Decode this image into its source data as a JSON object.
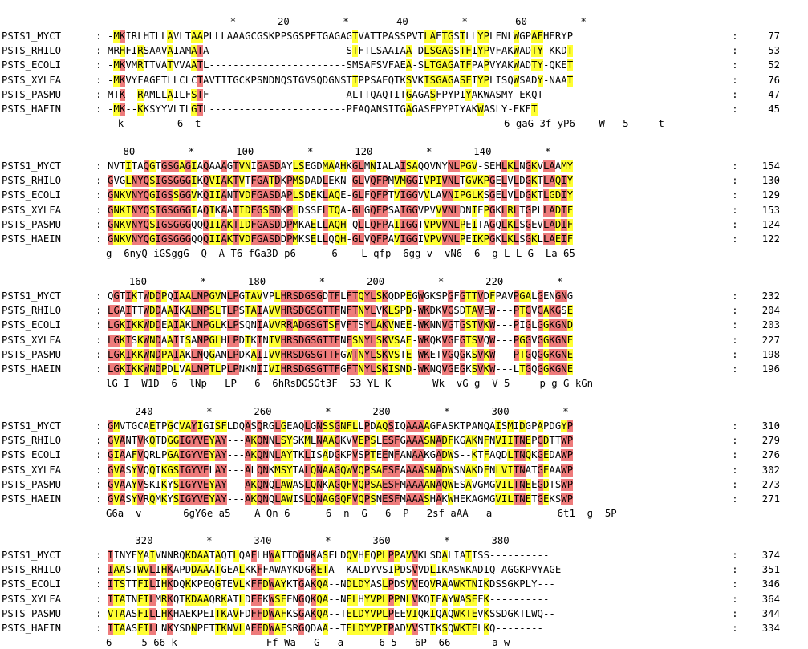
{
  "colors": {
    "identical": "#ee7b7b",
    "similar": "#ffff33",
    "text": "#000000",
    "background": "#ffffff"
  },
  "legend": {
    "identical_color_name": "red",
    "similar_color_name": "yellow"
  },
  "blocks": [
    {
      "ruler": "                     *       20         *        40         *        60         *",
      "rows": [
        {
          "name": "PSTS1_MYCT",
          "seq": "-MKIRLHTLLAVLTAAPLLLAAAGCGSKPPSGSPETGAGAGTVATTPASSPVTLAETGSTLLYPLFNLWGPAFHERYP",
          "end": "77"
        },
        {
          "name": "PSTS_RHILO",
          "seq": "MRHFIRSAAVAIAMATA-----------------------STFTLSAAIAA-DLSGAGSTFIYPVFAKWADTY-KKDT",
          "end": "53"
        },
        {
          "name": "PSTS_ECOLI",
          "seq": "-MKVMRTTVATVVAATL-----------------------SMSAFSVFAEA-SLTGAGATFPAPVYAKWADTY-QKET",
          "end": "52"
        },
        {
          "name": "PSTS_XYLFA",
          "seq": "-MKVYFAGFTLLCLCTAVTITGCKPSNDNQSTGVSQDGNSTTPPSAEQTKSVKISGAGASFIYPLISQWSADY-NAAT",
          "end": "76"
        },
        {
          "name": "PSTS_PASMU",
          "seq": "MTK--RAMLLAILFSTF-----------------------ALTTQAQTITGAGASFPYPIYAKWASMY-EKQT",
          "end": "47"
        },
        {
          "name": "PSTS_HAEIN",
          "seq": "-MK--KKSYYVLTLGTL-----------------------PFAQANSITGAGASFPYPIYAKWASLY-EKET",
          "end": "45"
        }
      ],
      "consensus": "  k         6  t                                                   6 gaG 3f yP6    W   5     t"
    },
    {
      "ruler": "   80         *       100         *       120         *       140         *",
      "rows": [
        {
          "name": "PSTS1_MYCT",
          "seq": "NVTITAQGTGSGAGIAQAAAGTVNIGASDAYLSEGDMAAHKGLMNIALAISAQQVNYNLPGV-SEHLKLNGKVLAAMY",
          "end": "154"
        },
        {
          "name": "PSTS_RHILO",
          "seq": "GVGLNYQSIGSGGGIKQVIAKTVTFGATDKPMSDADLEKN-GLVQFPMVMGGIVPIVNLTGVKPGELVLDGKTLAQIY",
          "end": "130"
        },
        {
          "name": "PSTS_ECOLI",
          "seq": "GNKVNYQGIGSSGGVKQIIANTVDFGASDAPLSDEKLAQE-GLFQFPTVIGGVVLAVNIPGLKSGELVLDGKTLGDIY",
          "end": "129"
        },
        {
          "name": "PSTS_XYLFA",
          "seq": "GNKINYQSIGSGGGIAQIKAATIDFGSSDKPLDSSELTQA-GLGQFPSAIGGVPVVVNLDNIEPGKLRLTGPLLADIF",
          "end": "153"
        },
        {
          "name": "PSTS_PASMU",
          "seq": "GNKVNYQSIGSGGGQQQIIAKTIDFGASDDPMKAELLAQH-QLLQFPAIIGGTVPVVNLPEITAGQLKLSGEVLADIF",
          "end": "124"
        },
        {
          "name": "PSTS_HAEIN",
          "seq": "GNKVNYQGIGSGGGQQQIIAKTVDFGASDDPMKSELLQQH-GLVQFPAVIGGIVPVVNLPEIKPGKLKLSGKLLAEIF",
          "end": "122"
        }
      ],
      "consensus": "g  6nyQ iGSggG  Q  A T6 fGa3D p6      6    L qfp  6gg v  vN6  6  g L L G  La 65"
    },
    {
      "ruler": "    160         *       180         *       200         *       220         *",
      "rows": [
        {
          "name": "PSTS1_MYCT",
          "seq": "QGTIKTWDDPQIAALNPGVNLPGTAVVPLHRSDGSGDTFLFTQYLSKQDPEGWGKSPGFGTTVDFPAVPGALGENGNG",
          "end": "232"
        },
        {
          "name": "PSTS_RHILO",
          "seq": "LGAITTWDDAAIKALNPSLTLPSTAIAVVHRSDGSGTTFNFTNYLVKLSPD-WKDKVGSDTAVEW---PTGVGAKGSE",
          "end": "204"
        },
        {
          "name": "PSTS_ECOLI",
          "seq": "LGKIKKWDDEAIAKLNPGLKLPSQNIAVVRRADGSGTSFVFTSYLAKVNEE-WKNNVGTGSTVKW---PIGLGGKGND",
          "end": "203"
        },
        {
          "name": "PSTS_XYLFA",
          "seq": "LGKISKWNDAAIISANPGLHLPDTKINIVHRSDGSGTTFNFSNYLSKVSAE-WKQKVGEGTSVQW---PGGVGGKGNE",
          "end": "227"
        },
        {
          "name": "PSTS_PASMU",
          "seq": "LGKIKKWNDPAIAKLNQGANLPDKAIIVVHRSDGSGTTFGWTNYLSKVSTE-WKETVGQGKSVKW---PTGQGGKGNE",
          "end": "198"
        },
        {
          "name": "PSTS_HAEIN",
          "seq": "LGKIKKWNDPDLVALNPTLPLPNKNIIVIHRSDGSGTTFGFTNYLSKISND-WKNQVGEGKSVKW---LTGQGGKGNE",
          "end": "196"
        }
      ],
      "consensus": "lG I  W1D  6  lNp   LP   6  6hRsDGSGt3F  53 YL K       Wk  vG g  V 5     p g G kGn"
    },
    {
      "ruler": "     240         *       260         *       280         *       300         *",
      "rows": [
        {
          "name": "PSTS1_MYCT",
          "seq": "GMVTGCAETPGCVAYIGISFLDQASQRGLGEAQLGNSSGNFLLPDAQSIQAAAAGFASKTPANQAISMIDGPAPDGYP",
          "end": "310"
        },
        {
          "name": "PSTS_RHILO",
          "seq": "GVANTVKQTDGGIGYVEYAY---AKQNNLSYSKMLNAAGKVVEPSLESFGAAASNADFKGAKNFNVIITNEPGDTTWP",
          "end": "279"
        },
        {
          "name": "PSTS_ECOLI",
          "seq": "GIAAFVQRLPGAIGYVEYAY---AKQNNLAYTKLISADGKPVSPTEENFANAAKGADWS--KTFAQDLTNQKGEDAWP",
          "end": "276"
        },
        {
          "name": "PSTS_XYLFA",
          "seq": "GVASYVQQIKGSIGYVELAY---ALQNKMSYTALQNAAGQWVQPSAESFAAAASNADWSNAKDFNLVITNATGEAAWP",
          "end": "302"
        },
        {
          "name": "PSTS_PASMU",
          "seq": "GVAAYVSKIKYSIGYVEYAY---AKQNQLAWASLQNKAGQFVQPSAESFMAAAANAQWESAVGMGVILTNEEGDTSWP",
          "end": "273"
        },
        {
          "name": "PSTS_HAEIN",
          "seq": "GVASYVRQMKYSIGYVEYAY---AKQNQLAWISLQNAGGQFVQPSNESFMAAASHAKWHEKAGMGVILTNETGEKSWP",
          "end": "271"
        }
      ],
      "consensus": "G6a  v       6gY6e a5    A Qn 6      6  n  G   6  P   2sf aAA   a           6t1  g  5P"
    },
    {
      "ruler": "     320         *       340         *       360         *       380",
      "rows": [
        {
          "name": "PSTS1_MYCT",
          "seq": "IINYEYAIVNNRQKDAATAQTLQAFLHWAITDGNKASFLDQVHFQPLPPAVVKLSDALIATISS----------",
          "end": "374"
        },
        {
          "name": "PSTS_RHILO",
          "seq": "IAASTWVLIHKAPDDAAATGEALKKFFAWAYKDGKETA--KALDYVSIPDSVVDLIKASWKADIQ-AGGKPVYAGE",
          "end": "351"
        },
        {
          "name": "PSTS_ECOLI",
          "seq": "ITSTTFILIHKDQKKPEQGTEVLKFFDWAYKTGAKQA--NDLDYASLPDSVVEQVRAAWKTNIKDSSGKPLY---",
          "end": "346"
        },
        {
          "name": "PSTS_XYLFA",
          "seq": "ITATNFILMRKQTKDAAQRKATLDFFKWSFENGQKQA--NELHYVPLPPNLVKQIEAYWASEFK----------",
          "end": "364"
        },
        {
          "name": "PSTS_PASMU",
          "seq": "VTAASFILLHKHAEKPEITKAVFDFFDWAFKSGAKQA--TELDYVPLPEEVIQKIQAQWKTEVKSSDGKTLWQ--",
          "end": "344"
        },
        {
          "name": "PSTS_HAEIN",
          "seq": "ITAASFILLNKYSDNPETTKNVLAFFDWAFSRGQDAA--TELDYVPIPADVVSTIKSQWKTELKQ--------",
          "end": "334"
        }
      ],
      "consensus": "6     5 66 k               Ff Wa   G   a      6 5   6P  66       a w"
    }
  ]
}
